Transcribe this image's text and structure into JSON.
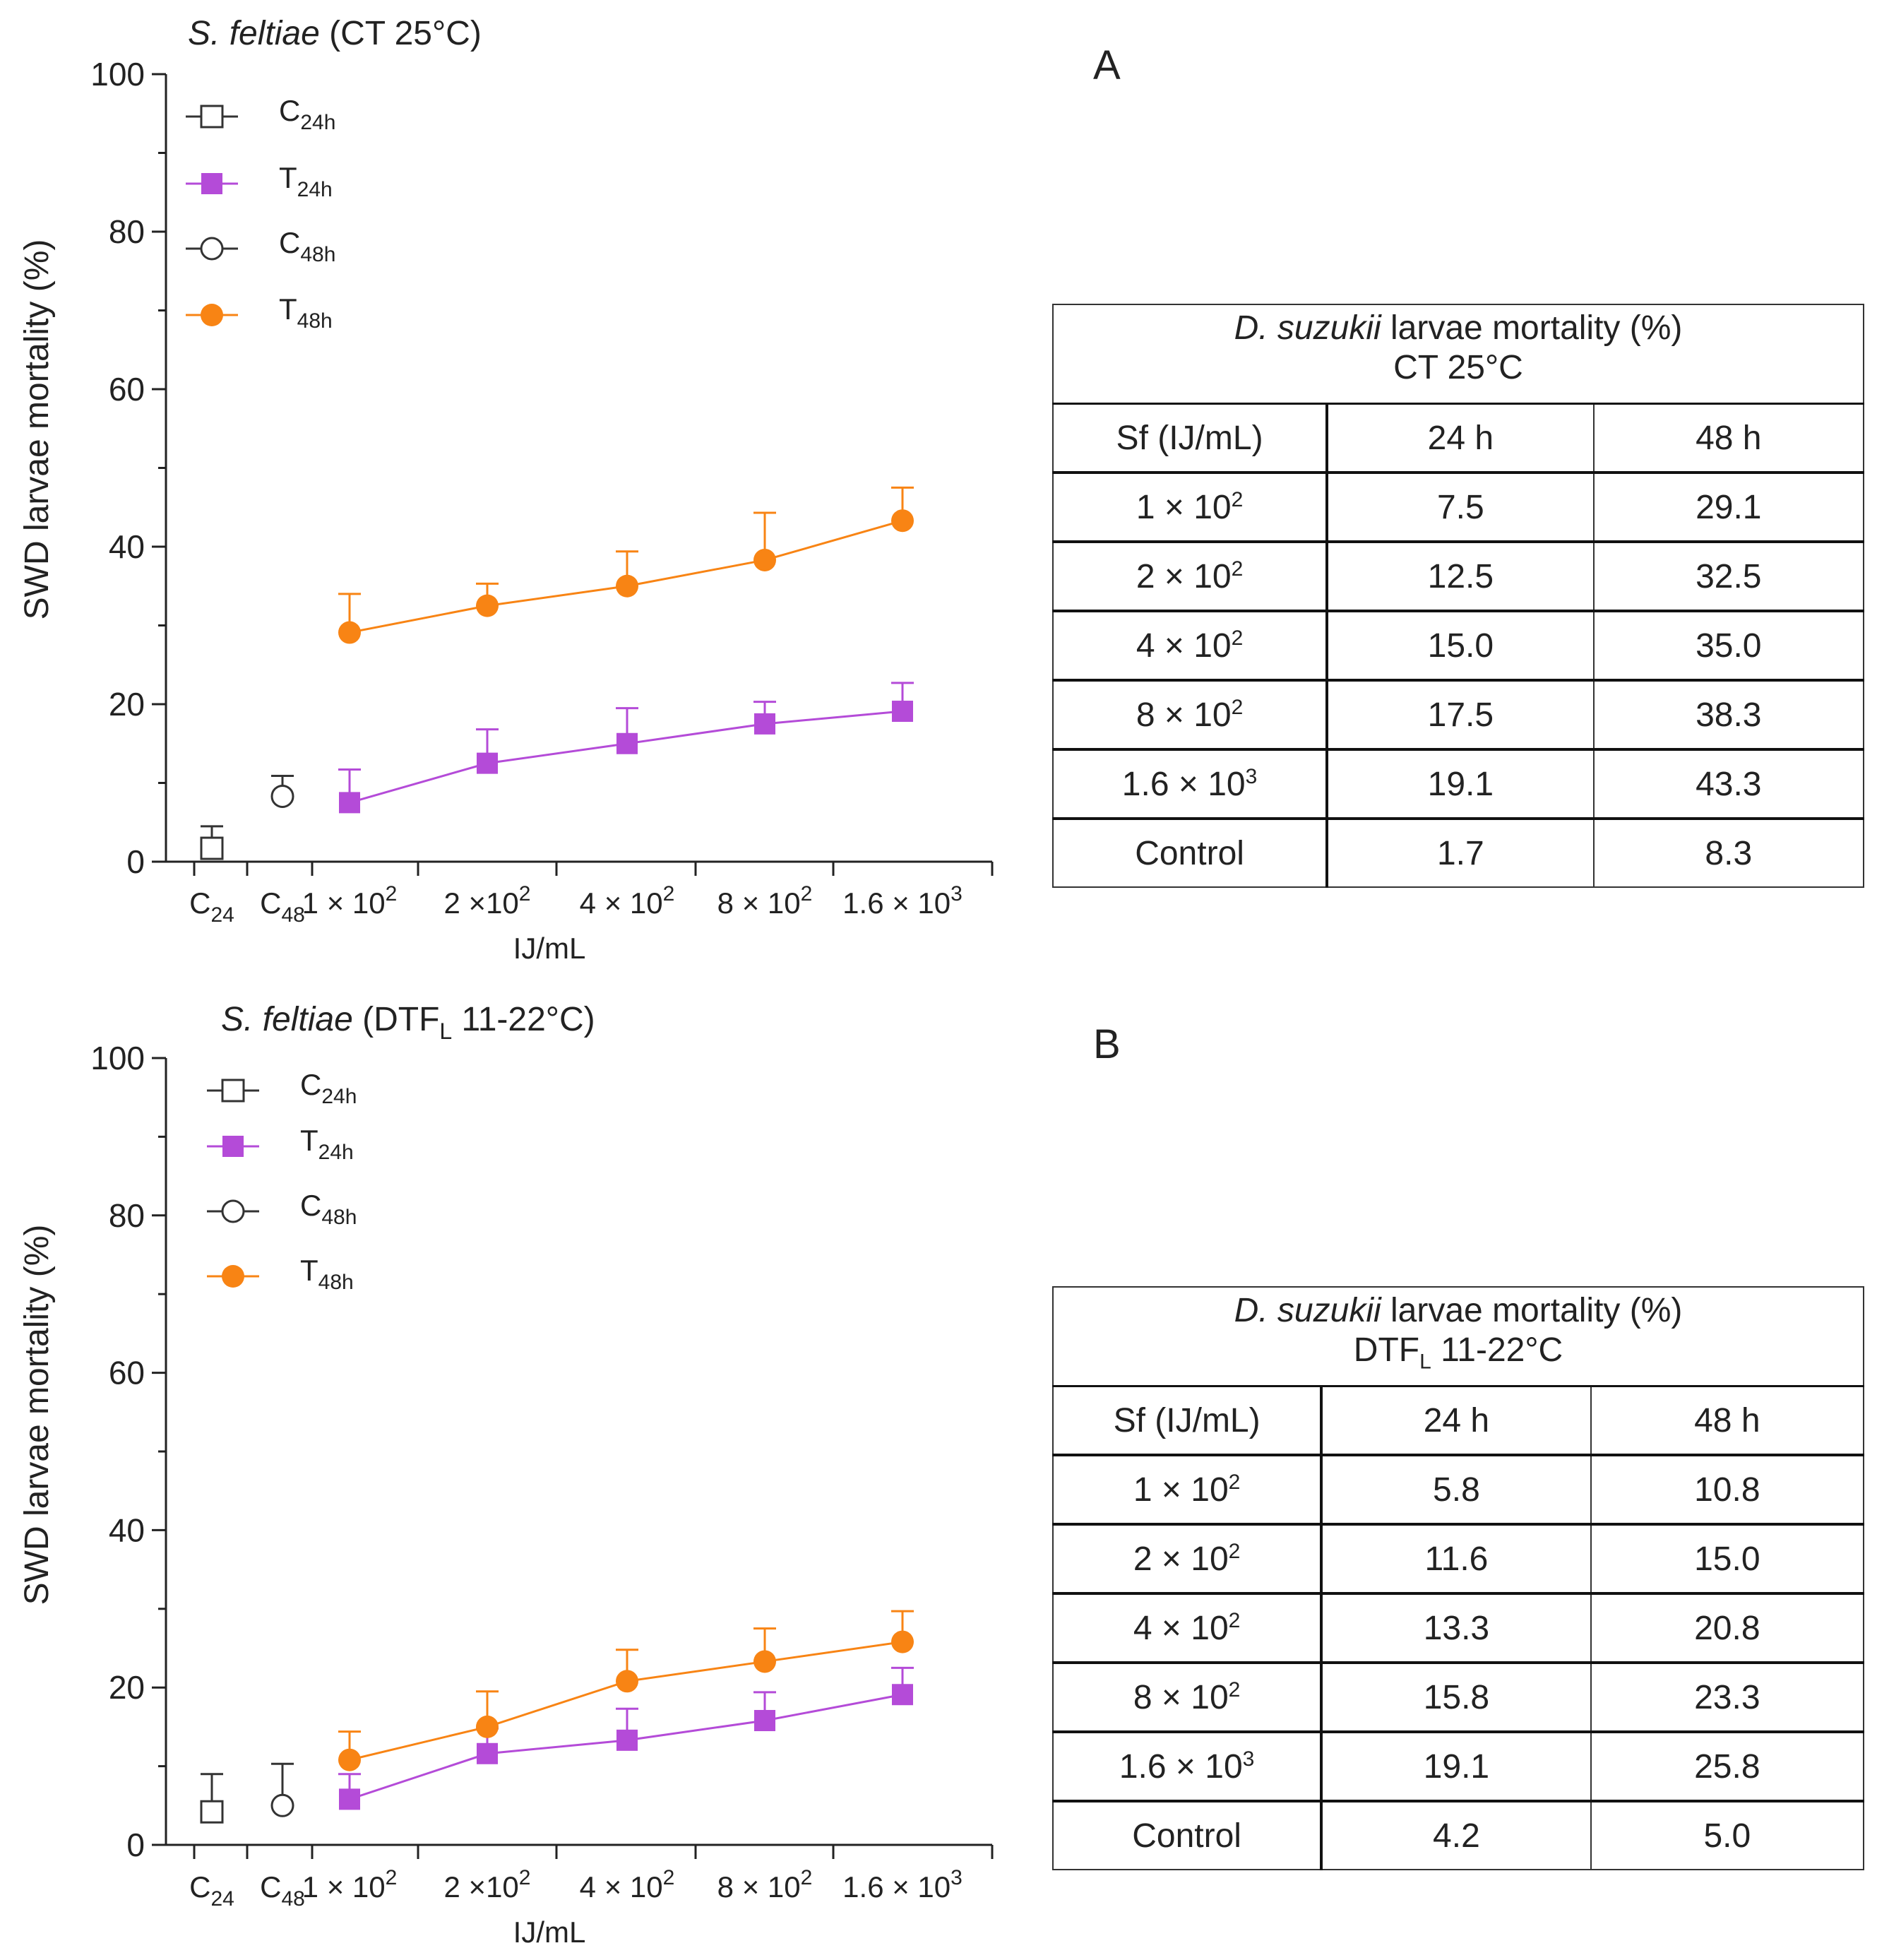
{
  "colors": {
    "control": "#333333",
    "t24": "#b44bd8",
    "t48": "#f88414"
  },
  "chart_data": [
    {
      "type": "line",
      "panel": "A",
      "title_species": "S. feltiae",
      "title_condition": "(CT 25°C)",
      "ylabel": "SWD larvae mortality (%)",
      "xlabel": "IJ/mL",
      "ylim": [
        0,
        100
      ],
      "yticks": [
        0,
        20,
        40,
        60,
        80,
        100
      ],
      "categories": [
        {
          "main": "C",
          "sub": "24",
          "sup": ""
        },
        {
          "main": "C",
          "sub": "48",
          "sup": ""
        },
        {
          "main": "1 × 10",
          "sub": "",
          "sup": "2"
        },
        {
          "main": "2 ×10",
          "sub": "",
          "sup": "2"
        },
        {
          "main": "4 × 10",
          "sub": "",
          "sup": "2"
        },
        {
          "main": "8 × 10",
          "sub": "",
          "sup": "2"
        },
        {
          "main": "1.6 × 10",
          "sub": "",
          "sup": "3"
        }
      ],
      "legend": [
        {
          "main": "C",
          "sub": "24h",
          "key": "c24"
        },
        {
          "main": "T",
          "sub": "24h",
          "key": "t24"
        },
        {
          "main": "C",
          "sub": "48h",
          "key": "c48"
        },
        {
          "main": "T",
          "sub": "48h",
          "key": "t48"
        }
      ],
      "series": [
        {
          "key": "c24",
          "name": "C24h",
          "x": [
            0
          ],
          "values": [
            1.7
          ],
          "errors": [
            2.8
          ]
        },
        {
          "key": "c48",
          "name": "C48h",
          "x": [
            1
          ],
          "values": [
            8.3
          ],
          "errors": [
            2.6
          ]
        },
        {
          "key": "t24",
          "name": "T24h",
          "x": [
            2,
            3,
            4,
            5,
            6
          ],
          "values": [
            7.5,
            12.5,
            15.0,
            17.5,
            19.1
          ],
          "errors": [
            4.2,
            4.3,
            4.5,
            2.8,
            3.6
          ]
        },
        {
          "key": "t48",
          "name": "T48h",
          "x": [
            2,
            3,
            4,
            5,
            6
          ],
          "values": [
            29.1,
            32.5,
            35.0,
            38.3,
            43.3
          ],
          "errors": [
            4.9,
            2.8,
            4.4,
            6.0,
            4.2
          ]
        }
      ],
      "table": {
        "caption_species": "D. suzukii",
        "caption_rest": " larvae mortality (%)",
        "caption_line2_main": "CT 25°C",
        "caption_line2_sub": "",
        "caption_line2_tail": "",
        "headers": [
          "Sf (IJ/mL)",
          "24 h",
          "48 h"
        ],
        "rows": [
          {
            "dose_main": "1 × 10",
            "dose_sup": "2",
            "h24": "7.5",
            "h48": "29.1"
          },
          {
            "dose_main": "2 × 10",
            "dose_sup": "2",
            "h24": "12.5",
            "h48": "32.5"
          },
          {
            "dose_main": "4 × 10",
            "dose_sup": "2",
            "h24": "15.0",
            "h48": "35.0"
          },
          {
            "dose_main": "8 × 10",
            "dose_sup": "2",
            "h24": "17.5",
            "h48": "38.3"
          },
          {
            "dose_main": "1.6 × 10",
            "dose_sup": "3",
            "h24": "19.1",
            "h48": "43.3"
          },
          {
            "dose_main": "Control",
            "dose_sup": "",
            "h24": "1.7",
            "h48": "8.3"
          }
        ]
      }
    },
    {
      "type": "line",
      "panel": "B",
      "title_species": "S. feltiae",
      "title_condition": "(DTF",
      "title_sub": "L",
      "title_tail": " 11-22°C)",
      "ylabel": "SWD larvae mortality (%)",
      "xlabel": "IJ/mL",
      "ylim": [
        0,
        100
      ],
      "yticks": [
        0,
        20,
        40,
        60,
        80,
        100
      ],
      "categories": [
        {
          "main": "C",
          "sub": "24",
          "sup": ""
        },
        {
          "main": "C",
          "sub": "48",
          "sup": ""
        },
        {
          "main": "1 × 10",
          "sub": "",
          "sup": "2"
        },
        {
          "main": "2 ×10",
          "sub": "",
          "sup": "2"
        },
        {
          "main": "4 × 10",
          "sub": "",
          "sup": "2"
        },
        {
          "main": "8 × 10",
          "sub": "",
          "sup": "2"
        },
        {
          "main": "1.6 × 10",
          "sub": "",
          "sup": "3"
        }
      ],
      "legend": [
        {
          "main": "C",
          "sub": "24h",
          "key": "c24"
        },
        {
          "main": "T",
          "sub": "24h",
          "key": "t24"
        },
        {
          "main": "C",
          "sub": "48h",
          "key": "c48"
        },
        {
          "main": "T",
          "sub": "48h",
          "key": "t48"
        }
      ],
      "series": [
        {
          "key": "c24",
          "name": "C24h",
          "x": [
            0
          ],
          "values": [
            4.2
          ],
          "errors": [
            4.8
          ]
        },
        {
          "key": "c48",
          "name": "C48h",
          "x": [
            1
          ],
          "values": [
            5.0
          ],
          "errors": [
            5.3
          ]
        },
        {
          "key": "t24",
          "name": "T24h",
          "x": [
            2,
            3,
            4,
            5,
            6
          ],
          "values": [
            5.8,
            11.6,
            13.3,
            15.8,
            19.1
          ],
          "errors": [
            3.2,
            3.2,
            4.0,
            3.6,
            3.4
          ]
        },
        {
          "key": "t48",
          "name": "T48h",
          "x": [
            2,
            3,
            4,
            5,
            6
          ],
          "values": [
            10.8,
            15.0,
            20.8,
            23.3,
            25.8
          ],
          "errors": [
            3.6,
            4.5,
            4.0,
            4.2,
            3.9
          ]
        }
      ],
      "table": {
        "caption_species": "D. suzukii",
        "caption_rest": " larvae mortality (%)",
        "caption_line2_main": "DTF",
        "caption_line2_sub": "L",
        "caption_line2_tail": " 11-22°C",
        "headers": [
          "Sf (IJ/mL)",
          "24 h",
          "48 h"
        ],
        "rows": [
          {
            "dose_main": "1 × 10",
            "dose_sup": "2",
            "h24": "5.8",
            "h48": "10.8"
          },
          {
            "dose_main": "2 × 10",
            "dose_sup": "2",
            "h24": "11.6",
            "h48": "15.0"
          },
          {
            "dose_main": "4 × 10",
            "dose_sup": "2",
            "h24": "13.3",
            "h48": "20.8"
          },
          {
            "dose_main": "8 × 10",
            "dose_sup": "2",
            "h24": "15.8",
            "h48": "23.3"
          },
          {
            "dose_main": "1.6 × 10",
            "dose_sup": "3",
            "h24": "19.1",
            "h48": "25.8"
          },
          {
            "dose_main": "Control",
            "dose_sup": "",
            "h24": "4.2",
            "h48": "5.0"
          }
        ]
      }
    }
  ]
}
